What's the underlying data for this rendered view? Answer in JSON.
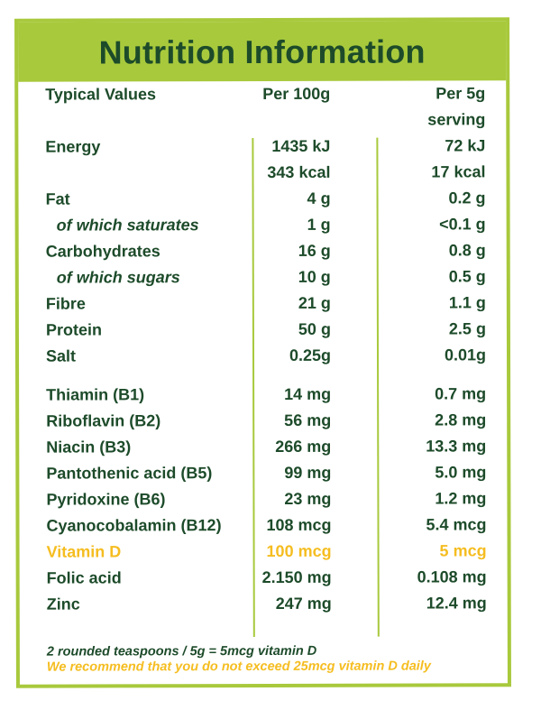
{
  "title": "Nutrition Information",
  "colors": {
    "brand_green": "#a8c93c",
    "text_dark_green": "#1d4b2a",
    "accent_yellow": "#f5bd20"
  },
  "columns": {
    "label": "Typical Values",
    "per100": "Per 100g",
    "per5_line1": "Per 5g",
    "per5_line2": "serving"
  },
  "rows": [
    {
      "label": "Energy",
      "per100": "1435 kJ",
      "per5": "72 kJ",
      "sub": false,
      "highlight": false
    },
    {
      "label": "",
      "per100": "343 kcal",
      "per5": "17 kcal",
      "sub": false,
      "highlight": false
    },
    {
      "label": "Fat",
      "per100": "4 g",
      "per5": "0.2 g",
      "sub": false,
      "highlight": false
    },
    {
      "label": "of which saturates",
      "per100": "1 g",
      "per5": "<0.1 g",
      "sub": true,
      "highlight": false
    },
    {
      "label": "Carbohydrates",
      "per100": "16 g",
      "per5": "0.8 g",
      "sub": false,
      "highlight": false
    },
    {
      "label": "of which sugars",
      "per100": "10 g",
      "per5": "0.5 g",
      "sub": true,
      "highlight": false
    },
    {
      "label": "Fibre",
      "per100": "21 g",
      "per5": "1.1 g",
      "sub": false,
      "highlight": false
    },
    {
      "label": "Protein",
      "per100": "50 g",
      "per5": "2.5 g",
      "sub": false,
      "highlight": false
    },
    {
      "label": "Salt",
      "per100": "0.25g",
      "per5": "0.01g",
      "sub": false,
      "highlight": false
    },
    {
      "label": "Thiamin (B1)",
      "per100": "14 mg",
      "per5": "0.7 mg",
      "sub": false,
      "highlight": false
    },
    {
      "label": "Riboflavin (B2)",
      "per100": "56 mg",
      "per5": "2.8 mg",
      "sub": false,
      "highlight": false
    },
    {
      "label": "Niacin (B3)",
      "per100": "266 mg",
      "per5": "13.3 mg",
      "sub": false,
      "highlight": false
    },
    {
      "label": "Pantothenic acid (B5)",
      "per100": "99 mg",
      "per5": "5.0 mg",
      "sub": false,
      "highlight": false
    },
    {
      "label": "Pyridoxine (B6)",
      "per100": "23 mg",
      "per5": "1.2 mg",
      "sub": false,
      "highlight": false
    },
    {
      "label": "Cyanocobalamin (B12)",
      "per100": "108 mcg",
      "per5": "5.4 mcg",
      "sub": false,
      "highlight": false
    },
    {
      "label": "Vitamin D",
      "per100": "100 mcg",
      "per5": "5 mcg",
      "sub": false,
      "highlight": true
    },
    {
      "label": "Folic acid",
      "per100": "2.150 mg",
      "per5": "0.108 mg",
      "sub": false,
      "highlight": false
    },
    {
      "label": "Zinc",
      "per100": "247 mg",
      "per5": "12.4 mg",
      "sub": false,
      "highlight": false
    }
  ],
  "notes": {
    "serving": "2 rounded teaspoons / 5g = 5mcg vitamin D",
    "warning": "We recommend that you do not exceed 25mcg vitamin D daily"
  }
}
